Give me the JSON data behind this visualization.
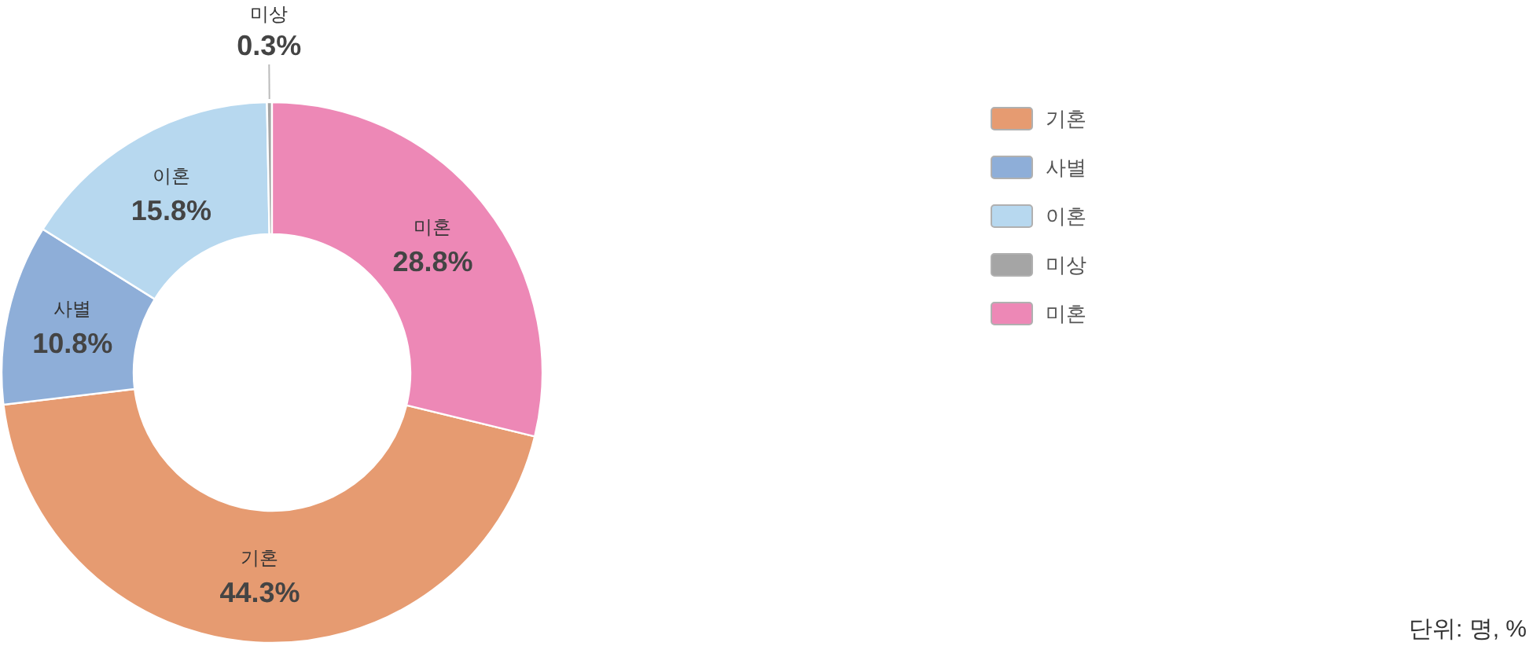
{
  "chart_data": {
    "type": "donut",
    "categories": [
      "기혼",
      "사별",
      "이혼",
      "미상",
      "미혼"
    ],
    "values": [
      44.3,
      10.8,
      15.8,
      0.3,
      28.8
    ],
    "value_labels": [
      "44.3%",
      "10.8%",
      "15.8%",
      "0.3%",
      "28.8%"
    ],
    "colors": [
      "#e69b71",
      "#8eaed8",
      "#b7d8ef",
      "#a5a5a5",
      "#ed88b6"
    ],
    "legend": "right",
    "annotations": [
      "단위: 명, %"
    ]
  }
}
